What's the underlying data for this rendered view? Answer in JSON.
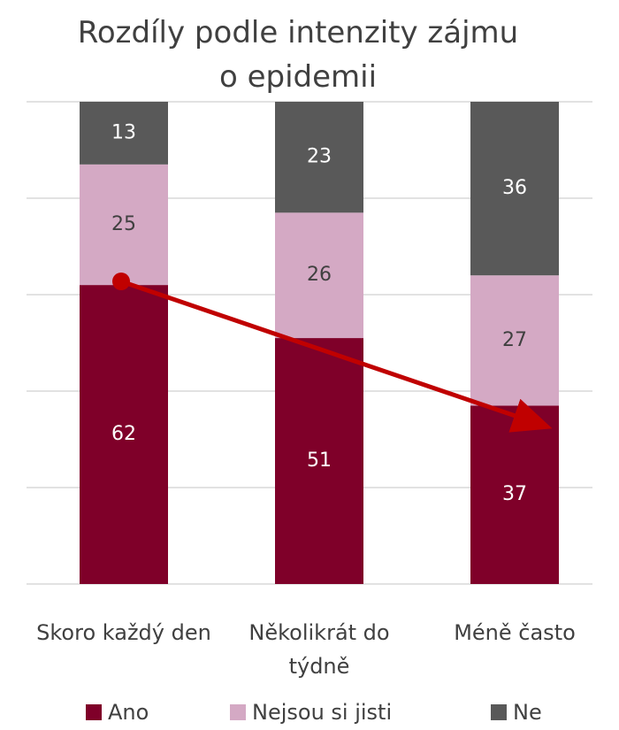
{
  "chart_data": {
    "type": "stacked_bar",
    "title": "Rozdíly podle intenzity zájmu o epidemii",
    "categories": [
      "Skoro každý den",
      "Několikrát do týdně",
      "Méně často"
    ],
    "series": [
      {
        "name": "Ano",
        "color": "#7f0029",
        "values": [
          62,
          51,
          37
        ]
      },
      {
        "name": "Nejsou si jisti",
        "color": "#d4a9c4",
        "values": [
          25,
          26,
          27
        ]
      },
      {
        "name": "Ne",
        "color": "#595959",
        "values": [
          13,
          23,
          36
        ]
      }
    ],
    "ylim": [
      0,
      100
    ],
    "yticks": [
      0,
      20,
      40,
      60,
      80,
      100
    ],
    "grid": true
  }
}
